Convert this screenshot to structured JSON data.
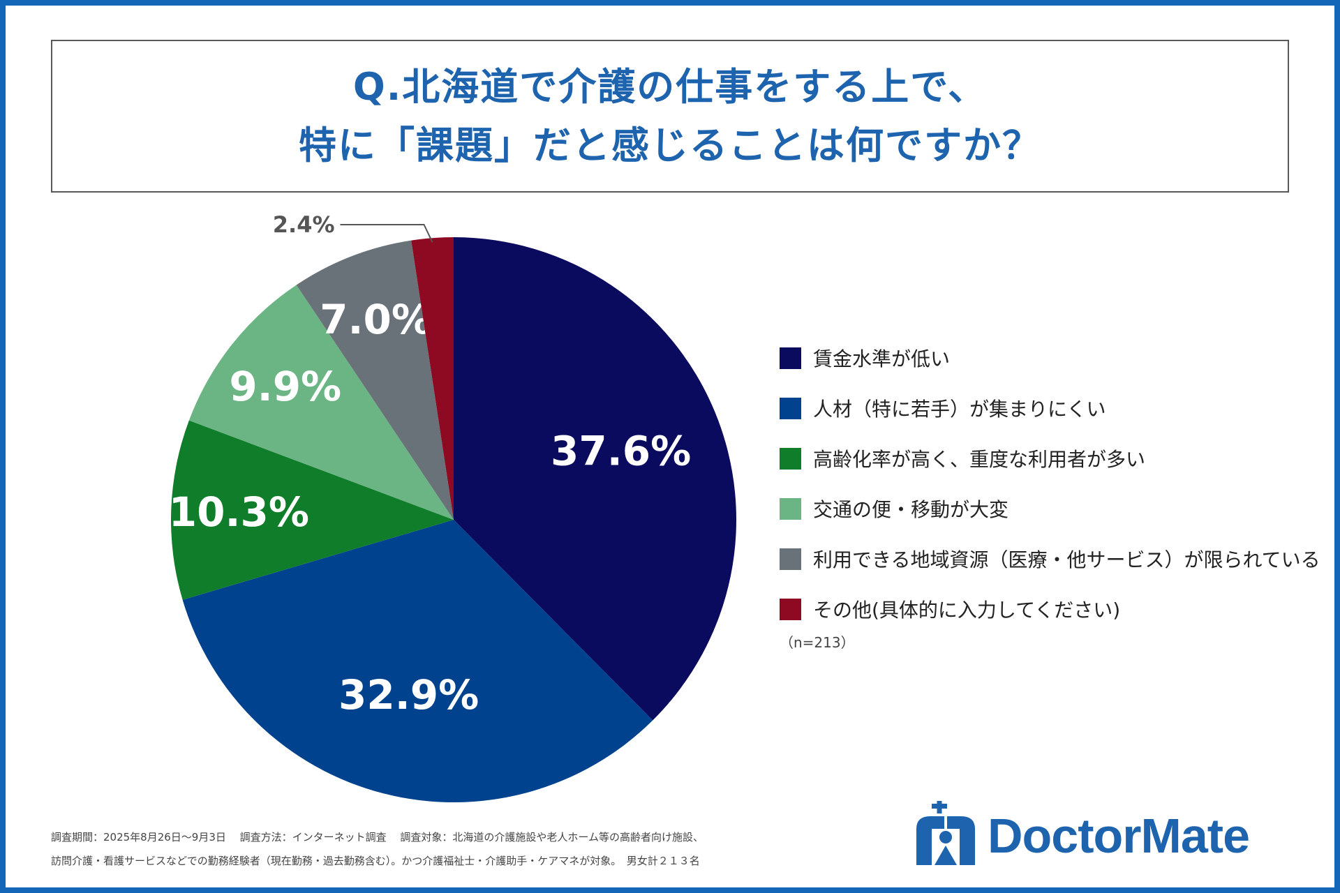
{
  "title": {
    "line1": "Q.北海道で介護の仕事をする上で、",
    "line2": "特に「課題」だと感じることは何ですか？"
  },
  "chart_data": {
    "type": "pie",
    "slices": [
      {
        "label": "賃金水準が低い",
        "value": 37.6,
        "display": "37.6%",
        "color": "#0a0a5e"
      },
      {
        "label": "人材（特に若手）が集まりにくい",
        "value": 32.9,
        "display": "32.9%",
        "color": "#00428e"
      },
      {
        "label": "高齢化率が高く、重度な利用者が多い",
        "value": 10.3,
        "display": "10.3%",
        "color": "#0f7d2a"
      },
      {
        "label": "交通の便・移動が大変",
        "value": 9.9,
        "display": "9.9%",
        "color": "#6ab583"
      },
      {
        "label": "利用できる地域資源（医療・他サービス）が限られている",
        "value": 7.0,
        "display": "7.0%",
        "color": "#6a7279"
      },
      {
        "label": "その他(具体的に入力してください)",
        "value": 2.4,
        "display": "2.4%",
        "color": "#8e0a22"
      }
    ],
    "start": "12 o'clock",
    "direction": "clockwise",
    "legend_position": "right"
  },
  "sample_size": "（n=213）",
  "footnote": {
    "line1": "調査期間：2025年8月26日〜9月3日　 調査方法：インターネット調査　 調査対象：北海道の介護施設や老人ホーム等の高齢者向け施設、",
    "line2": "訪問介護・看護サービスなどでの勤務経験者（現在勤務・過去勤務含む）。かつ介護福祉士・介護助手・ケアマネが対象。　男女計２１３名"
  },
  "logo": {
    "text": "DoctorMate",
    "icon": "doctormate-logo-icon",
    "color": "#1e63ae"
  },
  "colors": {
    "frame": "#1466b8",
    "title": "#1e63ae"
  }
}
